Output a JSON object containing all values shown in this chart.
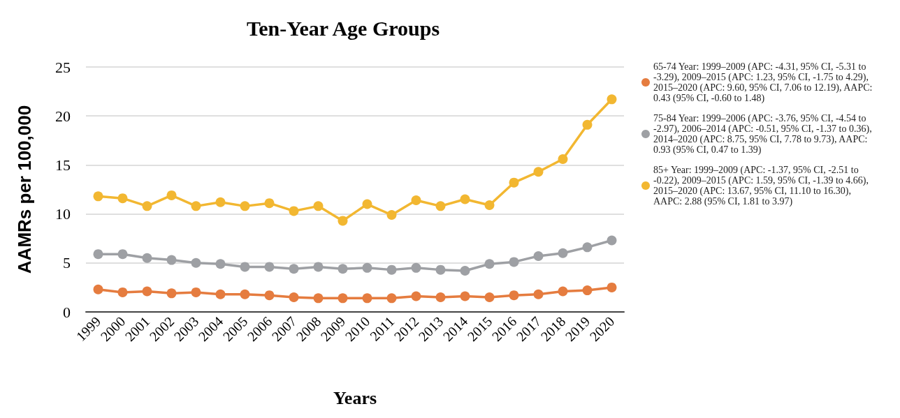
{
  "chart_data": {
    "type": "line",
    "title": "Ten-Year Age Groups",
    "xlabel": "Years",
    "ylabel": "AAMRs per 100,000",
    "categories": [
      "1999",
      "2000",
      "2001",
      "2002",
      "2003",
      "2004",
      "2005",
      "2006",
      "2007",
      "2008",
      "2009",
      "2010",
      "2011",
      "2012",
      "2013",
      "2014",
      "2015",
      "2016",
      "2017",
      "2018",
      "2019",
      "2020"
    ],
    "series": [
      {
        "name": "65-74 Year: 1999–2009 (APC: -4.31, 95% CI, -5.31 to -3.29), 2009–2015 (APC: 1.23, 95% CI, -1.75 to 4.29),  2015–2020 (APC: 9.60, 95% CI, 7.06 to 12.19), AAPC: 0.43 (95% CI, -0.60 to 1.48)",
        "color": "#e57c3f",
        "values": [
          2.3,
          2.0,
          2.1,
          1.9,
          2.0,
          1.8,
          1.8,
          1.7,
          1.5,
          1.4,
          1.4,
          1.4,
          1.4,
          1.6,
          1.5,
          1.6,
          1.5,
          1.7,
          1.8,
          2.1,
          2.2,
          2.5
        ]
      },
      {
        "name": "75-84 Year: 1999–2006 (APC: -3.76, 95% CI, -4.54 to -2.97), 2006–2014 (APC: -0.51, 95% CI, -1.37 to 0.36),  2014–2020 (APC: 8.75, 95% CI, 7.78 to 9.73), AAPC: 0.93 (95% CI, 0.47 to 1.39)",
        "color": "#9ea0a4",
        "values": [
          5.9,
          5.9,
          5.5,
          5.3,
          5.0,
          4.9,
          4.6,
          4.6,
          4.4,
          4.6,
          4.4,
          4.5,
          4.3,
          4.5,
          4.3,
          4.2,
          4.9,
          5.1,
          5.7,
          6.0,
          6.6,
          7.3
        ]
      },
      {
        "name": "85+ Year: 1999–2009 (APC: -1.37, 95% CI, -2.51 to -0.22), 2009–2015 (APC: 1.59, 95% CI, -1.39 to 4.66),  2015–2020 (APC: 13.67, 95% CI, 11.10 to 16.30), AAPC: 2.88 (95% CI, 1.81 to 3.97)",
        "color": "#f2b731",
        "values": [
          11.8,
          11.6,
          10.8,
          11.9,
          10.8,
          11.2,
          10.8,
          11.1,
          10.3,
          10.8,
          9.3,
          11.0,
          9.9,
          11.4,
          10.8,
          11.5,
          10.9,
          13.2,
          14.3,
          15.6,
          19.1,
          21.7
        ]
      }
    ],
    "ylim": [
      0,
      25
    ],
    "yticks": [
      0,
      5,
      10,
      15,
      20,
      25
    ],
    "grid": "y",
    "legend": "top right",
    "marker": "circle",
    "line_style": "solid"
  }
}
